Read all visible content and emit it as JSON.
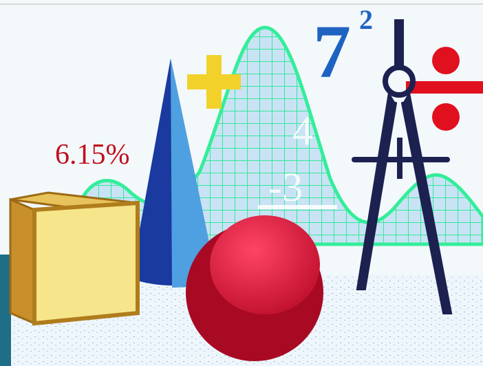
{
  "image": {
    "percent": "6.15%",
    "base": "7",
    "exponent": "2",
    "numerator": "4",
    "denominator": "-3"
  }
}
